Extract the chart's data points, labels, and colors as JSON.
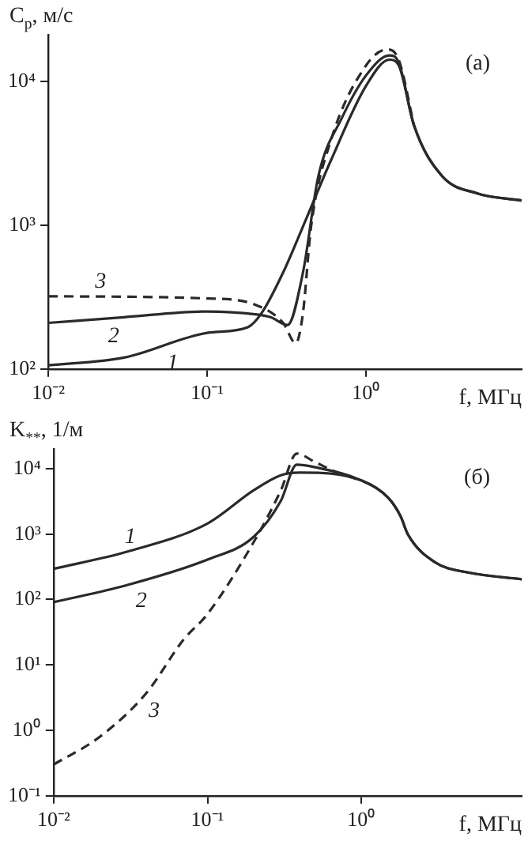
{
  "chart_data": [
    {
      "type": "line",
      "ylabel": "C$_{p}$, м/с",
      "xlabel": "f, МГц",
      "log": "xy",
      "grid": false,
      "legend": false,
      "marker": "none",
      "color": "#2a2a2a",
      "xlim": [
        0.01,
        9.5
      ],
      "ylim": [
        100,
        21000
      ],
      "xticks": [
        {
          "value": 0.01,
          "label": "10⁻²"
        },
        {
          "value": 0.1,
          "label": "10⁻¹"
        },
        {
          "value": 1,
          "label": "10⁰"
        }
      ],
      "yticks": [
        {
          "value": 100,
          "label": "10²"
        },
        {
          "value": 1000,
          "label": "10³"
        },
        {
          "value": 10000,
          "label": "10⁴"
        }
      ],
      "series": [
        {
          "line_style": "solid",
          "x": [
            0.01,
            0.03,
            0.1,
            0.18,
            0.22,
            0.3,
            0.4,
            0.6,
            1.0,
            1.4,
            1.6,
            2.0,
            3,
            5,
            9.5
          ],
          "values": [
            106,
            120,
            178,
            195,
            245,
            468,
            977,
            2820,
            9330,
            14100,
            12900,
            4900,
            2190,
            1660,
            1480
          ]
        },
        {
          "line_style": "solid",
          "x": [
            0.01,
            0.03,
            0.1,
            0.2,
            0.25,
            0.32,
            0.4,
            0.5,
            0.7,
            1.0,
            1.4,
            1.6,
            2.0,
            3,
            5,
            9.5
          ],
          "values": [
            209,
            229,
            251,
            240,
            229,
            202,
            468,
            2190,
            5500,
            11000,
            15100,
            13500,
            4900,
            2190,
            1660,
            1480
          ]
        },
        {
          "line_style": "dashed",
          "x": [
            0.01,
            0.1,
            0.2,
            0.3,
            0.36,
            0.4,
            0.45,
            0.6,
            1.0,
            1.35,
            1.6,
            2.0
          ],
          "values": [
            320,
            309,
            280,
            209,
            151,
            245,
            977,
            3890,
            12900,
            16600,
            14100,
            4900
          ]
        }
      ],
      "annotations": [
        {
          "text": "1",
          "x": 0.054,
          "y": 146
        },
        {
          "text": "2",
          "x": 0.023,
          "y": 224
        },
        {
          "text": "3",
          "x": 0.019,
          "y": 317
        },
        "(a)"
      ]
    },
    {
      "type": "line",
      "ylabel": "K$_{**}$, 1/м",
      "xlabel": "f, МГц",
      "log": "xy",
      "grid": false,
      "legend": false,
      "marker": "none",
      "color": "#2a2a2a",
      "xlim": [
        0.01,
        11
      ],
      "ylim": [
        0.1,
        20000
      ],
      "xticks": [
        {
          "value": 0.01,
          "label": "10⁻²"
        },
        {
          "value": 0.1,
          "label": "10⁻¹"
        },
        {
          "value": 1,
          "label": "10⁰"
        }
      ],
      "yticks": [
        {
          "value": 0.1,
          "label": "10⁻¹"
        },
        {
          "value": 1,
          "label": "10⁰"
        },
        {
          "value": 10,
          "label": "10¹"
        },
        {
          "value": 100,
          "label": "10²"
        },
        {
          "value": 1000,
          "label": "10³"
        },
        {
          "value": 10000,
          "label": "10⁴"
        }
      ],
      "series": [
        {
          "line_style": "solid",
          "x": [
            0.01,
            0.03,
            0.1,
            0.2,
            0.3,
            0.4,
            1.0,
            1.5,
            1.8,
            2.0,
            3,
            5,
            11
          ],
          "values": [
            295,
            537,
            1450,
            4680,
            7940,
            8700,
            6600,
            3550,
            1860,
            1000,
            372,
            257,
            204
          ]
        },
        {
          "line_style": "solid",
          "x": [
            0.01,
            0.03,
            0.1,
            0.2,
            0.3,
            0.38,
            0.5,
            1.0,
            1.5,
            1.8,
            2.0,
            3,
            5,
            11
          ],
          "values": [
            91,
            166,
            407,
            912,
            3240,
            11500,
            10500,
            6600,
            3550,
            1860,
            1000,
            372,
            257,
            204
          ]
        },
        {
          "line_style": "dashed",
          "x": [
            0.01,
            0.02,
            0.04,
            0.07,
            0.1,
            0.2,
            0.3,
            0.38,
            0.5,
            0.7,
            1.0
          ],
          "values": [
            0.3,
            0.8,
            3.7,
            24.5,
            60,
            760,
            4680,
            17000,
            12600,
            8700,
            6600
          ]
        }
      ],
      "annotations": [
        {
          "text": "1",
          "x": 0.028,
          "y": 518
        },
        {
          "text": "2",
          "x": 0.033,
          "y": 178
        },
        {
          "text": "3",
          "x": 0.04,
          "y": 3.7
        },
        "(б)"
      ]
    }
  ]
}
